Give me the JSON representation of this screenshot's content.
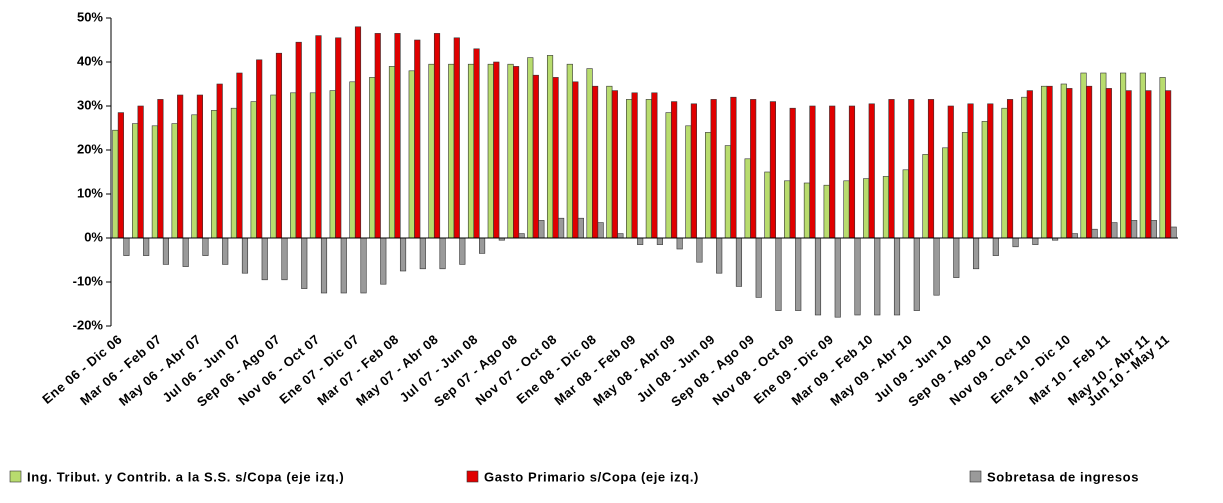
{
  "chart_data": {
    "type": "bar",
    "categories": [
      "Ene 06 - Dic 06",
      null,
      "Mar 06 - Feb 07",
      null,
      "May 06 - Abr 07",
      null,
      "Jul 06 - Jun 07",
      null,
      "Sep 06 - Ago 07",
      null,
      "Nov 06 - Oct 07",
      null,
      "Ene 07 - Dic 07",
      null,
      "Mar 07 - Feb 08",
      null,
      "May 07 - Abr 08",
      null,
      "Jul 07 - Jun 08",
      null,
      "Sep 07 - Ago 08",
      null,
      "Nov 07 - Oct 08",
      null,
      "Ene 08 - Dic 08",
      null,
      "Mar 08 - Feb 09",
      null,
      "May 08 - Abr 09",
      null,
      "Jul 08 - Jun 09",
      null,
      "Sep 08 - Ago 09",
      null,
      "Nov 08 - Oct 09",
      null,
      "Ene 09 - Dic 09",
      null,
      "Mar 09 - Feb 10",
      null,
      "May 09 - Abr 10",
      null,
      "Jul 09 - Jun 10",
      null,
      "Sep 09 - Ago 10",
      null,
      "Nov 09 - Oct 10",
      null,
      "Ene 10 - Dic 10",
      null,
      "Mar 10 - Feb 11",
      null,
      "May 10 - Abr 11",
      "Jun 10 - May 11"
    ],
    "series": [
      {
        "name": "Ing. Tribut. y Contrib. a la S.S. s/Copa (eje izq.)",
        "color": "#b8dc6e",
        "values": [
          24.5,
          26,
          25.5,
          26,
          28,
          29,
          29.5,
          31,
          32.5,
          33,
          33,
          33.5,
          35.5,
          36.5,
          39,
          38,
          39.5,
          39.5,
          39.5,
          39.5,
          39.5,
          41,
          41.5,
          39.5,
          38.5,
          34.5,
          31.5,
          31.5,
          28.5,
          25.5,
          24,
          21,
          18,
          15,
          13,
          12.5,
          12,
          13,
          13.5,
          14,
          15.5,
          19,
          20.5,
          24,
          26.5,
          29.5,
          32,
          34.5,
          35,
          37.5,
          37.5,
          37.5,
          37.5,
          36.5
        ]
      },
      {
        "name": "Gasto Primario s/Copa (eje izq.)",
        "color": "#e00000",
        "values": [
          28.5,
          30,
          31.5,
          32.5,
          32.5,
          35,
          37.5,
          40.5,
          42,
          44.5,
          46,
          45.5,
          48,
          46.5,
          46.5,
          45,
          46.5,
          45.5,
          43,
          40,
          39,
          37,
          36.5,
          35.5,
          34.5,
          33.5,
          33,
          33,
          31,
          30.5,
          31.5,
          32,
          31.5,
          31,
          29.5,
          30,
          30,
          30,
          30.5,
          31.5,
          31.5,
          31.5,
          30,
          30.5,
          30.5,
          31.5,
          33.5,
          34.5,
          34,
          34.5,
          34,
          33.5,
          33.5,
          33.5
        ]
      },
      {
        "name": "Sobretasa de ingresos",
        "color": "#9a9a9a",
        "values": [
          -4,
          -4,
          -6,
          -6.5,
          -4,
          -6,
          -8,
          -9.5,
          -9.5,
          -11.5,
          -12.5,
          -12.5,
          -12.5,
          -10.5,
          -7.5,
          -7,
          -7,
          -6,
          -3.5,
          -0.5,
          1,
          4,
          4.5,
          4.5,
          3.5,
          1,
          -1.5,
          -1.5,
          -2.5,
          -5.5,
          -8,
          -11,
          -13.5,
          -16.5,
          -16.5,
          -17.5,
          -18,
          -17.5,
          -17.5,
          -17.5,
          -16.5,
          -13,
          -9,
          -7,
          -4,
          -2,
          -1.5,
          -0.5,
          1,
          2,
          3.5,
          4,
          4,
          2.5
        ]
      }
    ],
    "ylim": [
      -20,
      50
    ],
    "yticks": [
      {
        "value": -20,
        "label": "-20%"
      },
      {
        "value": -10,
        "label": "-10%"
      },
      {
        "value": 0,
        "label": "0%"
      },
      {
        "value": 10,
        "label": "10%"
      },
      {
        "value": 20,
        "label": "20%"
      },
      {
        "value": 30,
        "label": "30%"
      },
      {
        "value": 40,
        "label": "40%"
      },
      {
        "value": 50,
        "label": "50%"
      }
    ],
    "grid": false,
    "legend": "bottom"
  }
}
